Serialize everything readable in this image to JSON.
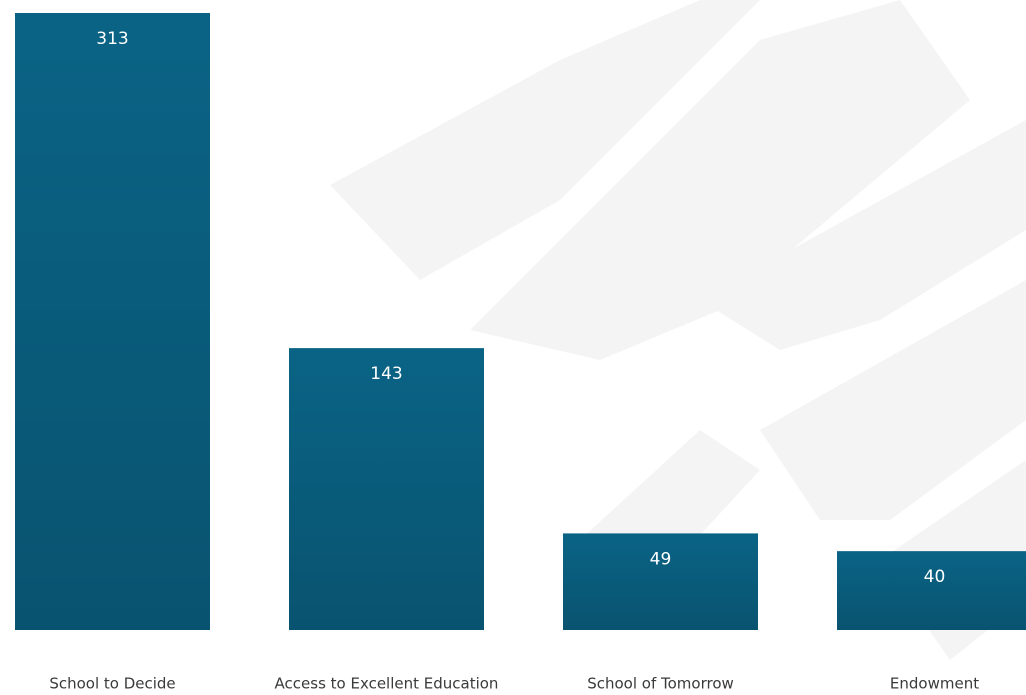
{
  "chart_data": {
    "type": "bar",
    "categories": [
      "School to Decide",
      "Access to Excellent Education",
      "School of Tomorrow",
      "Endowment"
    ],
    "values": [
      313,
      143,
      49,
      40
    ],
    "color": "#0a6385"
  }
}
